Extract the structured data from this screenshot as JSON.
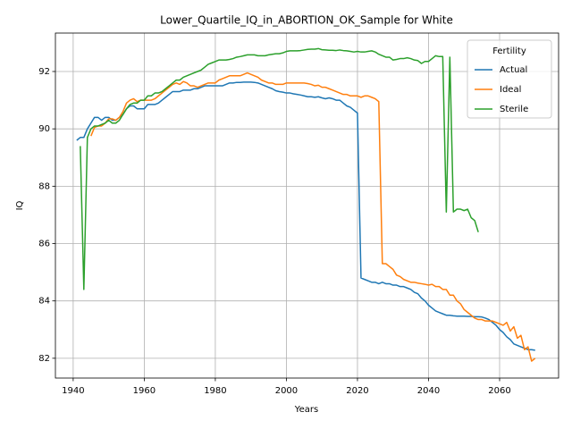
{
  "chart_data": {
    "type": "line",
    "title": "Lower_Quartile_IQ_in_ABORTION_OK_Sample for White",
    "x_label": "Years",
    "y_label": "IQ",
    "legend_title": "Fertility",
    "legend": "upper right",
    "grid": true,
    "xlim": [
      1935,
      2076.6
    ],
    "ylim": [
      81.31,
      93.34
    ],
    "xticks": [
      1940,
      1960,
      1980,
      2000,
      2020,
      2040,
      2060
    ],
    "yticks": [
      82,
      84,
      86,
      88,
      90,
      92
    ],
    "x": [
      1941,
      1942,
      1943,
      1944,
      1945,
      1946,
      1947,
      1948,
      1949,
      1950,
      1951,
      1952,
      1953,
      1954,
      1955,
      1956,
      1957,
      1958,
      1959,
      1960,
      1961,
      1962,
      1963,
      1964,
      1965,
      1966,
      1967,
      1968,
      1969,
      1970,
      1971,
      1972,
      1973,
      1974,
      1975,
      1976,
      1977,
      1978,
      1979,
      1980,
      1981,
      1982,
      1983,
      1984,
      1985,
      1986,
      1987,
      1988,
      1989,
      1990,
      1991,
      1992,
      1993,
      1994,
      1995,
      1996,
      1997,
      1998,
      1999,
      2000,
      2001,
      2002,
      2003,
      2004,
      2005,
      2006,
      2007,
      2008,
      2009,
      2010,
      2011,
      2012,
      2013,
      2014,
      2015,
      2016,
      2017,
      2018,
      2019,
      2020,
      2021,
      2022,
      2023,
      2024,
      2025,
      2026,
      2027,
      2028,
      2029,
      2030,
      2031,
      2032,
      2033,
      2034,
      2035,
      2036,
      2037,
      2038,
      2039,
      2040,
      2041,
      2042,
      2043,
      2044,
      2045,
      2046,
      2047,
      2048,
      2049,
      2050,
      2051,
      2052,
      2053,
      2054,
      2055,
      2056,
      2057,
      2058,
      2059,
      2060,
      2061,
      2062,
      2063,
      2064,
      2065,
      2066,
      2067,
      2068,
      2069,
      2070
    ],
    "series": [
      {
        "name": "Actual",
        "color": "#1f77b4",
        "values": [
          89.6,
          89.7,
          89.7,
          90.0,
          90.2,
          90.4,
          90.4,
          90.3,
          90.4,
          90.4,
          90.3,
          90.3,
          90.4,
          90.5,
          90.7,
          90.8,
          90.8,
          90.7,
          90.7,
          90.7,
          90.85,
          90.85,
          90.85,
          90.9,
          91.0,
          91.1,
          91.2,
          91.3,
          91.3,
          91.3,
          91.35,
          91.35,
          91.35,
          91.4,
          91.4,
          91.45,
          91.5,
          91.5,
          91.5,
          91.5,
          91.5,
          91.5,
          91.55,
          91.6,
          91.6,
          91.62,
          91.62,
          91.63,
          91.63,
          91.63,
          91.62,
          91.6,
          91.55,
          91.5,
          91.45,
          91.4,
          91.33,
          91.3,
          91.28,
          91.25,
          91.25,
          91.22,
          91.2,
          91.18,
          91.15,
          91.12,
          91.12,
          91.1,
          91.12,
          91.08,
          91.05,
          91.08,
          91.05,
          91.0,
          91.0,
          90.9,
          90.8,
          90.75,
          90.65,
          90.55,
          84.8,
          84.75,
          84.7,
          84.65,
          84.65,
          84.6,
          84.65,
          84.6,
          84.6,
          84.55,
          84.55,
          84.5,
          84.5,
          84.45,
          84.4,
          84.3,
          84.25,
          84.1,
          84.0,
          83.85,
          83.75,
          83.65,
          83.6,
          83.55,
          83.5,
          83.5,
          83.48,
          83.47,
          83.47,
          83.47,
          83.46,
          83.46,
          83.45,
          83.45,
          83.44,
          83.4,
          83.35,
          83.25,
          83.15,
          83.0,
          82.9,
          82.75,
          82.65,
          82.5,
          82.45,
          82.4,
          82.35,
          82.3,
          82.3,
          82.28
        ]
      },
      {
        "name": "Ideal",
        "color": "#ff7f0e",
        "values": [
          null,
          null,
          null,
          null,
          89.75,
          90.05,
          90.1,
          90.1,
          90.2,
          90.35,
          90.35,
          90.3,
          90.4,
          90.6,
          90.9,
          91.0,
          91.05,
          90.95,
          91.0,
          91.0,
          91.0,
          91.0,
          91.05,
          91.15,
          91.25,
          91.35,
          91.45,
          91.55,
          91.6,
          91.55,
          91.65,
          91.6,
          91.5,
          91.5,
          91.45,
          91.5,
          91.55,
          91.6,
          91.6,
          91.6,
          91.7,
          91.75,
          91.8,
          91.85,
          91.85,
          91.85,
          91.85,
          91.9,
          91.95,
          91.9,
          91.85,
          91.8,
          91.7,
          91.65,
          91.6,
          91.6,
          91.55,
          91.55,
          91.55,
          91.6,
          91.6,
          91.6,
          91.6,
          91.6,
          91.6,
          91.58,
          91.55,
          91.5,
          91.52,
          91.45,
          91.45,
          91.4,
          91.35,
          91.3,
          91.25,
          91.2,
          91.2,
          91.15,
          91.15,
          91.15,
          91.1,
          91.15,
          91.15,
          91.1,
          91.05,
          90.95,
          85.3,
          85.3,
          85.2,
          85.1,
          84.9,
          84.85,
          84.75,
          84.7,
          84.65,
          84.65,
          84.62,
          84.6,
          84.58,
          84.55,
          84.58,
          84.5,
          84.5,
          84.4,
          84.4,
          84.2,
          84.2,
          84.0,
          83.9,
          83.7,
          83.6,
          83.5,
          83.4,
          83.35,
          83.35,
          83.3,
          83.3,
          83.3,
          83.25,
          83.2,
          83.15,
          83.25,
          82.95,
          83.1,
          82.7,
          82.8,
          82.3,
          82.4,
          81.9,
          82.0
        ]
      },
      {
        "name": "Sterile",
        "color": "#2ca02c",
        "values": [
          null,
          89.4,
          84.4,
          89.7,
          90.0,
          90.1,
          90.1,
          90.15,
          90.2,
          90.3,
          90.2,
          90.2,
          90.3,
          90.5,
          90.7,
          90.85,
          90.9,
          90.9,
          91.0,
          91.0,
          91.15,
          91.15,
          91.25,
          91.25,
          91.3,
          91.4,
          91.5,
          91.6,
          91.7,
          91.7,
          91.8,
          91.85,
          91.9,
          91.95,
          92.0,
          92.05,
          92.15,
          92.25,
          92.3,
          92.35,
          92.4,
          92.4,
          92.4,
          92.42,
          92.45,
          92.5,
          92.52,
          92.55,
          92.58,
          92.58,
          92.58,
          92.55,
          92.55,
          92.55,
          92.58,
          92.6,
          92.62,
          92.62,
          92.65,
          92.7,
          92.72,
          92.72,
          92.72,
          92.73,
          92.75,
          92.77,
          92.78,
          92.78,
          92.8,
          92.76,
          92.75,
          92.74,
          92.74,
          92.73,
          92.75,
          92.73,
          92.72,
          92.7,
          92.68,
          92.7,
          92.68,
          92.68,
          92.7,
          92.72,
          92.68,
          92.6,
          92.55,
          92.5,
          92.5,
          92.4,
          92.42,
          92.45,
          92.45,
          92.48,
          92.45,
          92.4,
          92.38,
          92.28,
          92.35,
          92.35,
          92.45,
          92.55,
          92.52,
          92.52,
          87.1,
          92.5,
          87.1,
          87.2,
          87.2,
          87.15,
          87.2,
          86.9,
          86.8,
          86.4,
          null,
          null,
          null,
          null,
          null,
          null,
          null,
          null,
          null,
          null,
          null,
          null,
          null,
          null,
          null,
          null
        ]
      }
    ]
  }
}
